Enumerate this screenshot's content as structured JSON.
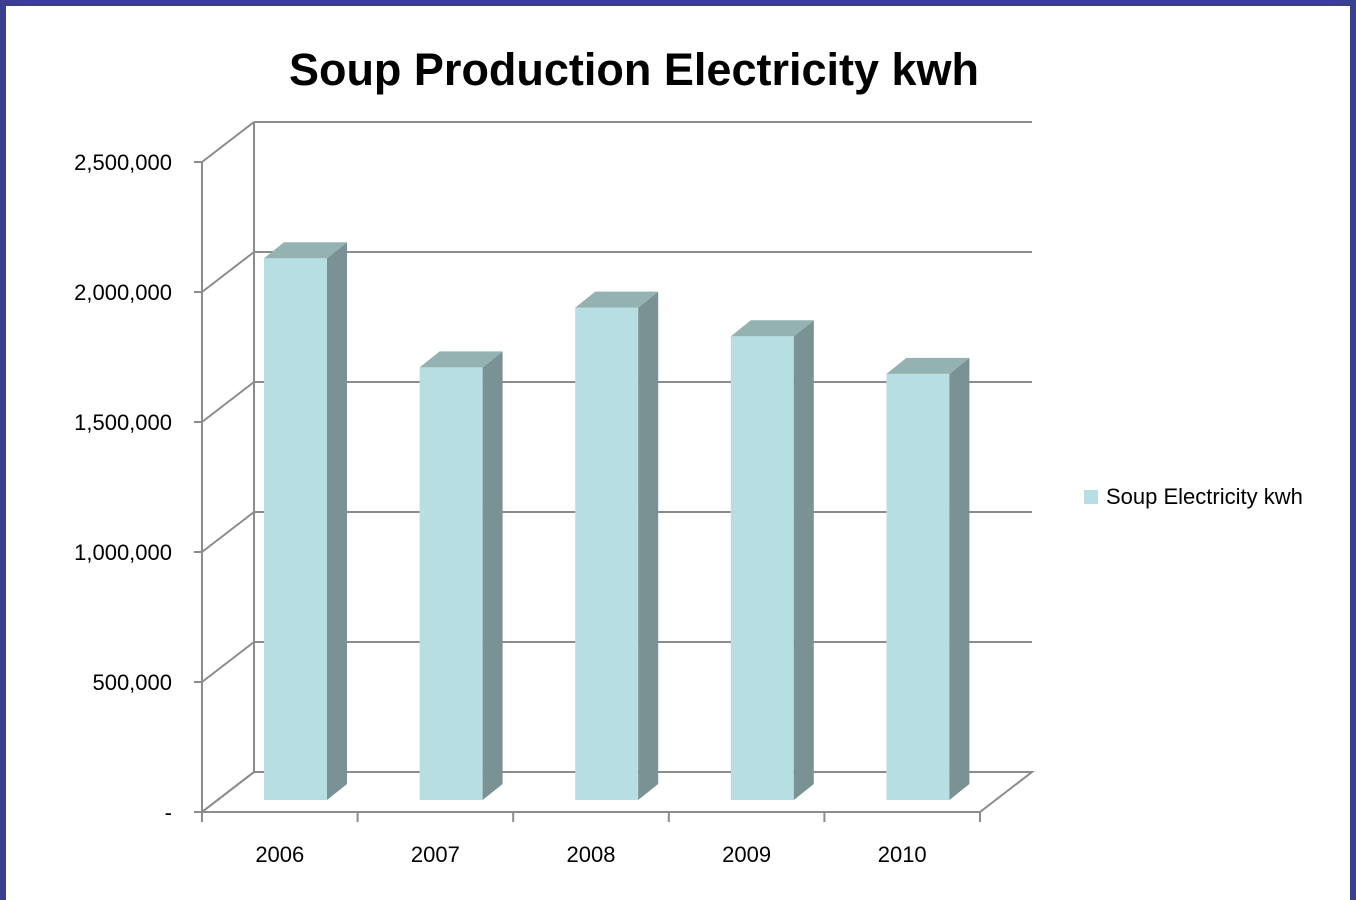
{
  "chart_data": {
    "type": "bar",
    "title": "Soup Production Electricity kwh",
    "categories": [
      "2006",
      "2007",
      "2008",
      "2009",
      "2010"
    ],
    "series": [
      {
        "name": "Soup Electricity kwh",
        "values": [
          2180000,
          1760000,
          1990000,
          1880000,
          1735000
        ]
      }
    ],
    "ylim": [
      0,
      2500000
    ],
    "yticks": [
      0,
      500000,
      1000000,
      1500000,
      2000000,
      2500000
    ],
    "ytick_labels": [
      "-",
      "500,000",
      "1,000,000",
      "1,500,000",
      "2,000,000",
      "2,500,000"
    ],
    "grid": true,
    "legend": "right",
    "style": "3d-column",
    "colors": {
      "front": "#b7dfe3",
      "side": "#7a9293",
      "top": "#95b2b3",
      "grid": "#8c8c8c",
      "border": "#3b3f8f"
    }
  }
}
